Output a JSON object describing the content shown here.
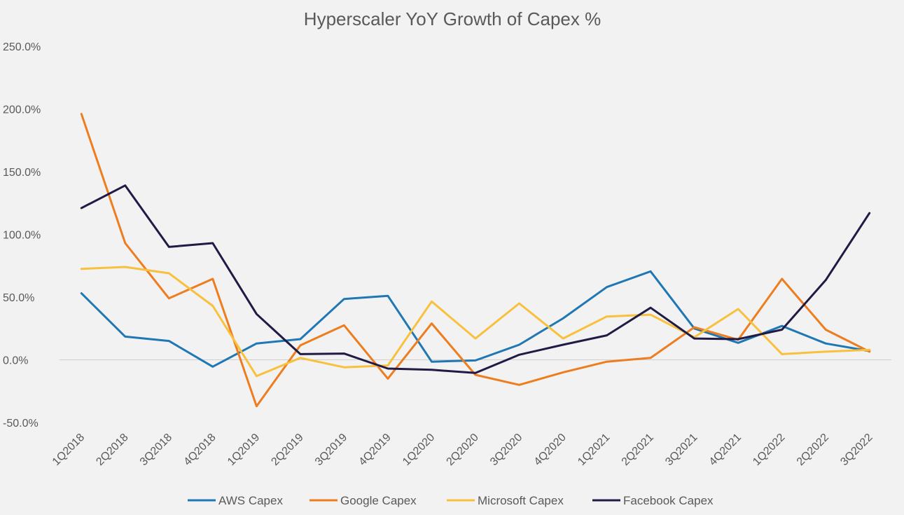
{
  "chart_data": {
    "type": "line",
    "title": "Hyperscaler YoY Growth of Capex %",
    "xlabel": "",
    "ylabel": "",
    "ylim": [
      -50,
      250
    ],
    "y_ticks": [
      250,
      200,
      150,
      100,
      50,
      0,
      -50
    ],
    "y_tick_labels": [
      "250.0%",
      "200.0%",
      "150.0%",
      "100.0%",
      "50.0%",
      "0.0%",
      "-50.0%"
    ],
    "categories": [
      "1Q2018",
      "2Q2018",
      "3Q2018",
      "4Q2018",
      "1Q2019",
      "2Q2019",
      "3Q2019",
      "4Q2019",
      "1Q2020",
      "2Q2020",
      "3Q2020",
      "4Q2020",
      "1Q2021",
      "2Q2021",
      "3Q2021",
      "4Q2021",
      "1Q2022",
      "2Q2022",
      "3Q2022"
    ],
    "grid": false,
    "legend_position": "bottom",
    "series": [
      {
        "name": "AWS Capex",
        "color": "#1f77b4",
        "values": [
          53,
          18.5,
          15,
          -5.5,
          13,
          16.5,
          48.5,
          51,
          -1.5,
          -0.5,
          12,
          33,
          58,
          70.5,
          25,
          13.5,
          27,
          13,
          7
        ]
      },
      {
        "name": "Google Capex",
        "color": "#ed7d1f",
        "values": [
          196,
          93,
          49,
          64.5,
          -37,
          11.5,
          27.5,
          -15,
          29,
          -12,
          -20,
          -10,
          -1.5,
          1.5,
          26,
          16,
          64.5,
          24,
          6.5
        ]
      },
      {
        "name": "Microsoft Capex",
        "color": "#f9c03e",
        "values": [
          72.5,
          74,
          69,
          43,
          -13,
          1.5,
          -6,
          -4.5,
          46.5,
          17,
          45,
          17,
          34.5,
          36,
          18,
          40.5,
          4.5,
          6.5,
          8
        ]
      },
      {
        "name": "Facebook Capex",
        "color": "#201a45",
        "values": [
          121,
          139,
          90,
          93,
          36.5,
          4.5,
          5,
          -7,
          -8,
          -10.5,
          4,
          12,
          19.5,
          41.5,
          17,
          16.5,
          24,
          63.5,
          117
        ]
      }
    ]
  }
}
